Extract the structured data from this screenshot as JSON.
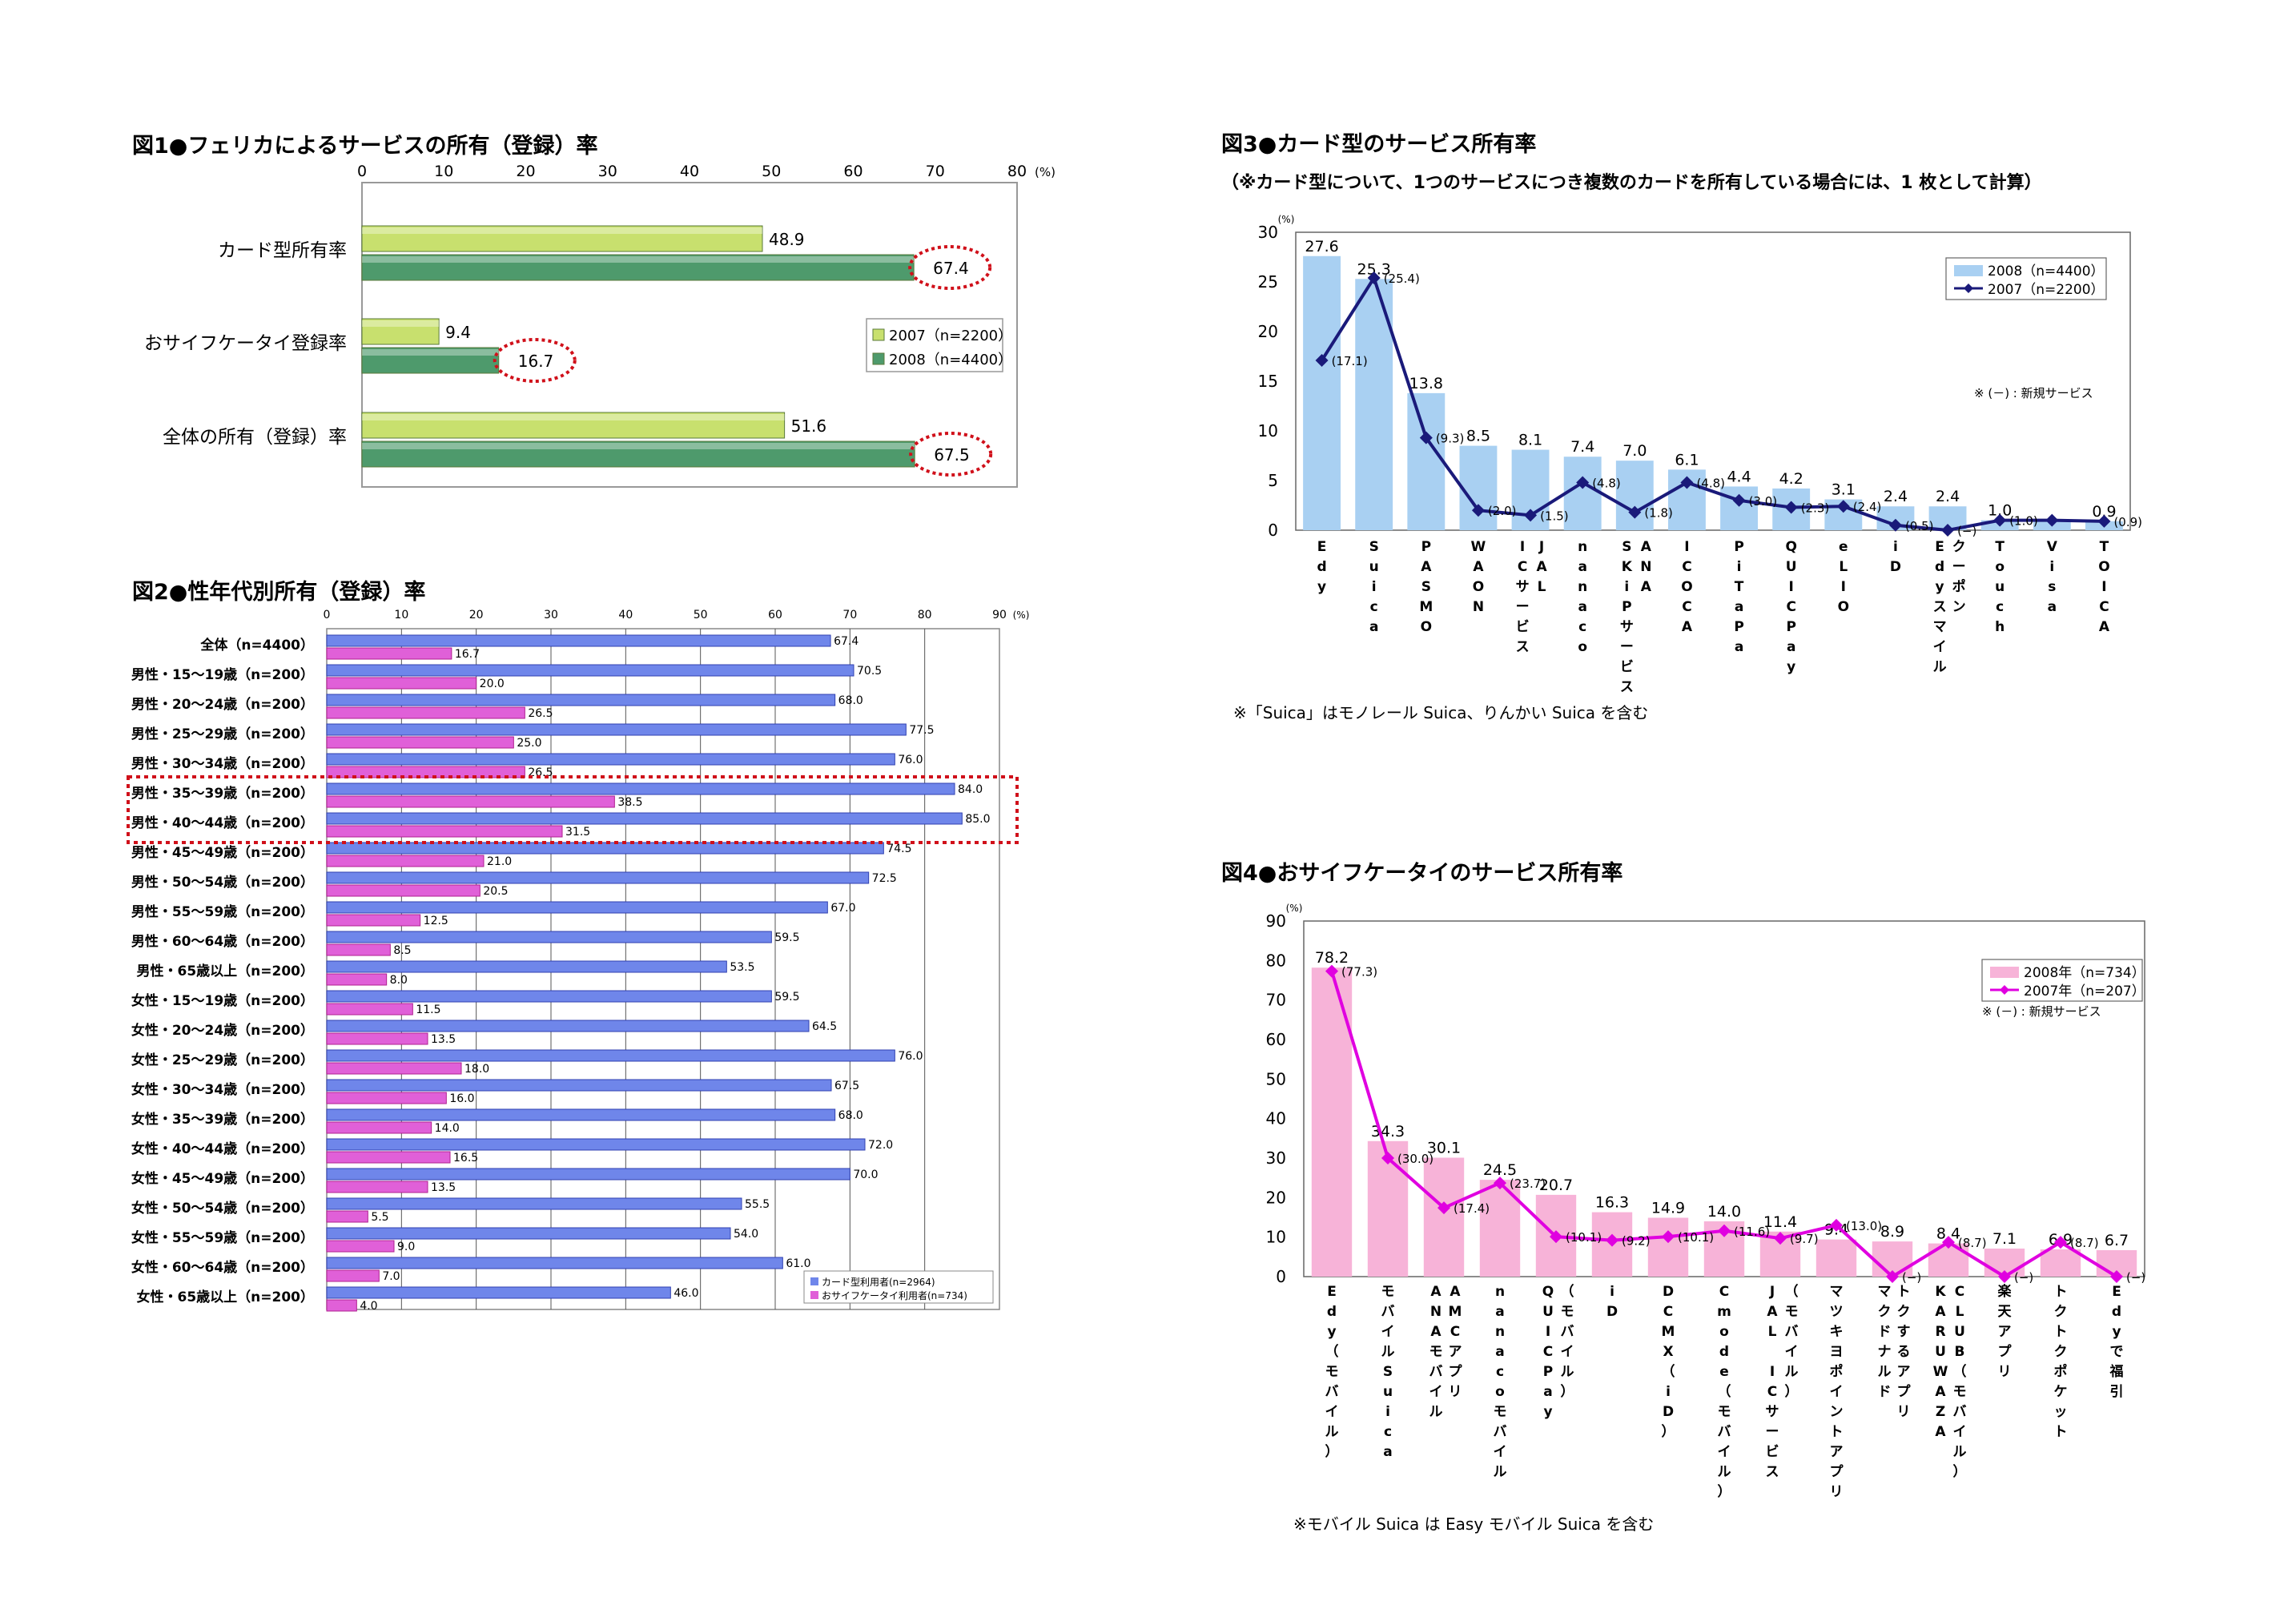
{
  "chart_data": [
    {
      "id": "fig1",
      "type": "bar",
      "orientation": "horizontal",
      "title": "図1●フェリカによるサービスの所有（登録）率",
      "unit": "(%)",
      "xlim": [
        0,
        80
      ],
      "ticks": [
        "0",
        "10",
        "20",
        "30",
        "40",
        "50",
        "60",
        "70",
        "80"
      ],
      "categories": [
        "カード型所有率",
        "おサイフケータイ登録率",
        "全体の所有（登録）率"
      ],
      "series": [
        {
          "name": "2007（n=2200）",
          "values": [
            48.9,
            9.4,
            51.6
          ],
          "labels": [
            "48.9",
            "9.4",
            "51.6"
          ],
          "color": "#c8e06e"
        },
        {
          "name": "2008（n=4400）",
          "values": [
            67.4,
            16.7,
            67.5
          ],
          "labels": [
            "67.4",
            "16.7",
            "67.5"
          ],
          "color": "#4e9a6c"
        }
      ],
      "highlight_series": 1
    },
    {
      "id": "fig2",
      "type": "bar",
      "orientation": "horizontal",
      "title": "図2●性年代別所有（登録）率",
      "unit": "(%)",
      "xlim": [
        0,
        90
      ],
      "ticks": [
        "0",
        "10",
        "20",
        "30",
        "40",
        "50",
        "60",
        "70",
        "80",
        "90"
      ],
      "categories": [
        "全体（n=4400）",
        "男性・15～19歳（n=200）",
        "男性・20～24歳（n=200）",
        "男性・25～29歳（n=200）",
        "男性・30～34歳（n=200）",
        "男性・35～39歳（n=200）",
        "男性・40～44歳（n=200）",
        "男性・45～49歳（n=200）",
        "男性・50～54歳（n=200）",
        "男性・55～59歳（n=200）",
        "男性・60～64歳（n=200）",
        "男性・65歳以上（n=200）",
        "女性・15～19歳（n=200）",
        "女性・20～24歳（n=200）",
        "女性・25～29歳（n=200）",
        "女性・30～34歳（n=200）",
        "女性・35～39歳（n=200）",
        "女性・40～44歳（n=200）",
        "女性・45～49歳（n=200）",
        "女性・50～54歳（n=200）",
        "女性・55～59歳（n=200）",
        "女性・60～64歳（n=200）",
        "女性・65歳以上（n=200）"
      ],
      "series": [
        {
          "name": "カード型利用者(n=2964)",
          "color": "#6f86ea",
          "values": [
            67.4,
            70.5,
            68.0,
            77.5,
            76.0,
            84.0,
            85.0,
            74.5,
            72.5,
            67.0,
            59.5,
            53.5,
            59.5,
            64.5,
            76.0,
            67.5,
            68.0,
            72.0,
            70.0,
            55.5,
            54.0,
            61.0,
            46.0
          ],
          "labels": [
            "67.4",
            "70.5",
            "68.0",
            "77.5",
            "76.0",
            "84.0",
            "85.0",
            "74.5",
            "72.5",
            "67.0",
            "59.5",
            "53.5",
            "59.5",
            "64.5",
            "76.0",
            "67.5",
            "68.0",
            "72.0",
            "70.0",
            "55.5",
            "54.0",
            "61.0",
            "46.0"
          ]
        },
        {
          "name": "おサイフケータイ利用者(n=734)",
          "color": "#e060d8",
          "values": [
            16.7,
            20.0,
            26.5,
            25.0,
            26.5,
            38.5,
            31.5,
            21.0,
            20.5,
            12.5,
            8.5,
            8.0,
            11.5,
            13.5,
            18.0,
            16.0,
            14.0,
            16.5,
            13.5,
            5.5,
            9.0,
            7.0,
            4.0
          ],
          "labels": [
            "16.7",
            "20.0",
            "26.5",
            "25.0",
            "26.5",
            "38.5",
            "31.5",
            "21.0",
            "20.5",
            "12.5",
            "8.5",
            "8.0",
            "11.5",
            "13.5",
            "18.0",
            "16.0",
            "14.0",
            "16.5",
            "13.5",
            "5.5",
            "9.0",
            "7.0",
            "4.0"
          ]
        }
      ],
      "highlight_rows": [
        5,
        6
      ]
    },
    {
      "id": "fig3",
      "type": "bar",
      "title": "図3●カード型のサービス所有率",
      "subtitle": "（※カード型について、1つのサービスにつき複数のカードを所有している場合には、1 枚として計算）",
      "unit": "(%)",
      "ylim": [
        0,
        30
      ],
      "ticks": [
        "0",
        "5",
        "10",
        "15",
        "20",
        "25",
        "30"
      ],
      "categories": [
        "Edy",
        "Suica",
        "PASMO",
        "WAON",
        "ICサービスJAL",
        "nanaco",
        "SKiPサービスANA",
        "ICOCA",
        "PiTaPa",
        "QUICPay",
        "eLIO",
        "iD",
        "Edyスマイルクーポン",
        "Touch",
        "Visa",
        "TOICA"
      ],
      "category_lines": [
        [
          "E",
          "d",
          "y"
        ],
        [
          "S",
          "u",
          "i",
          "c",
          "a"
        ],
        [
          "P",
          "A",
          "S",
          "M",
          "O"
        ],
        [
          "W",
          "A",
          "O",
          "N"
        ],
        [
          "I",
          "C",
          "サ",
          "ー",
          "ビ",
          "ス"
        ],
        [
          "n",
          "a",
          "n",
          "a",
          "c",
          "o"
        ],
        [
          "S",
          "K",
          "i",
          "P",
          "サ",
          "ー",
          "ビ",
          "ス"
        ],
        [
          "I",
          "C",
          "O",
          "C",
          "A"
        ],
        [
          "P",
          "i",
          "T",
          "a",
          "P",
          "a"
        ],
        [
          "Q",
          "U",
          "I",
          "C",
          "P",
          "a",
          "y"
        ],
        [
          "e",
          "L",
          "I",
          "O"
        ],
        [
          "i",
          "D"
        ],
        [
          "E",
          "d",
          "y",
          "ス",
          "マ",
          "イ",
          "ル"
        ],
        [
          "T",
          "o",
          "u",
          "c",
          "h"
        ],
        [
          "V",
          "i",
          "s",
          "a"
        ],
        [
          "T",
          "O",
          "I",
          "C",
          "A"
        ]
      ],
      "category_lines2": [
        [],
        [],
        [],
        [],
        [
          "J",
          "A",
          "L"
        ],
        [],
        [
          "A",
          "N",
          "A"
        ],
        [],
        [],
        [],
        [],
        [],
        [
          "ク",
          "ー",
          "ポ",
          "ン"
        ],
        [],
        [],
        []
      ],
      "bar_series": {
        "name": "2008（n=4400）",
        "color": "#a9d0f2",
        "values": [
          27.6,
          25.3,
          13.8,
          8.5,
          8.1,
          7.4,
          7.0,
          6.1,
          4.4,
          4.2,
          3.1,
          2.4,
          2.4,
          1.0,
          1.0,
          0.9
        ],
        "labels": [
          "27.6",
          "25.3",
          "13.8",
          "8.5",
          "8.1",
          "7.4",
          "7.0",
          "6.1",
          "4.4",
          "4.2",
          "3.1",
          "2.4",
          "2.4",
          "1.0",
          "",
          "0.9"
        ]
      },
      "line_series": {
        "name": "2007（n=2200）",
        "color": "#1a1a7a",
        "values": [
          17.1,
          25.4,
          9.3,
          2.0,
          1.5,
          4.8,
          1.8,
          4.8,
          3.0,
          2.3,
          2.4,
          0.5,
          0.0,
          1.0,
          1.0,
          0.9
        ],
        "labels": [
          "(17.1)",
          "(25.4)",
          "(9.3)",
          "(2.0)",
          "(1.5)",
          "(4.8)",
          "(1.8)",
          "(4.8)",
          "(3.0)",
          "(2.3)",
          "(2.4)",
          "(0.5)",
          "(−)",
          "(1.0)",
          "",
          "(0.9)"
        ]
      },
      "legend_note": "※ (－) : 新規サービス",
      "footnote": "※「Suica」はモノレール Suica、りんかい Suica を含む"
    },
    {
      "id": "fig4",
      "type": "bar",
      "title": "図4●おサイフケータイのサービス所有率",
      "unit": "(%)",
      "ylim": [
        0,
        90
      ],
      "ticks": [
        "0",
        "10",
        "20",
        "30",
        "40",
        "50",
        "60",
        "70",
        "80",
        "90"
      ],
      "categories": [
        "Edy（モバイル）",
        "モバイルSuica",
        "ANAモバイルAMCアプリ",
        "nanacoモバイル",
        "QUICPay（モバイル）",
        "iD",
        "DCMX（iD）",
        "Cmode（モバイル）",
        "JAL ICサービス（モバイル）",
        "マツキヨポイントアプリ",
        "マクドナルドトクするアプリ",
        "KARUWAZA CLUB（モバイル）",
        "楽天アプリ",
        "トクトクポケット",
        "Edyで福引"
      ],
      "category_lines": [
        [
          "E",
          "d",
          "y",
          "（",
          "モ",
          "バ",
          "イ",
          "ル",
          "）"
        ],
        [
          "モ",
          "バ",
          "イ",
          "ル",
          "S",
          "u",
          "i",
          "c",
          "a"
        ],
        [
          "A",
          "N",
          "A",
          "モ",
          "バ",
          "イ",
          "ル"
        ],
        [
          "n",
          "a",
          "n",
          "a",
          "c",
          "o",
          "モ",
          "バ",
          "イ",
          "ル"
        ],
        [
          "Q",
          "U",
          "I",
          "C",
          "P",
          "a",
          "y"
        ],
        [
          "i",
          "D"
        ],
        [
          "D",
          "C",
          "M",
          "X",
          "（",
          "i",
          "D",
          "）"
        ],
        [
          "C",
          "m",
          "o",
          "d",
          "e",
          "（",
          "モ",
          "バ",
          "イ",
          "ル",
          "）"
        ],
        [
          "J",
          "A",
          "L",
          "　",
          "I",
          "C",
          "サ",
          "ー",
          "ビ",
          "ス"
        ],
        [
          "マ",
          "ツ",
          "キ",
          "ヨ",
          "ポ",
          "イ",
          "ン",
          "ト",
          "ア",
          "プ",
          "リ"
        ],
        [
          "マ",
          "ク",
          "ド",
          "ナ",
          "ル",
          "ド"
        ],
        [
          "K",
          "A",
          "R",
          "U",
          "W",
          "A",
          "Z",
          "A"
        ],
        [
          "楽",
          "天",
          "ア",
          "プ",
          "リ"
        ],
        [
          "ト",
          "ク",
          "ト",
          "ク",
          "ポ",
          "ケ",
          "ッ",
          "ト"
        ],
        [
          "E",
          "d",
          "y",
          "で",
          "福",
          "引"
        ]
      ],
      "category_lines2": [
        [],
        [],
        [
          "A",
          "M",
          "C",
          "ア",
          "プ",
          "リ"
        ],
        [],
        [
          "（",
          "モ",
          "バ",
          "イ",
          "ル",
          "）"
        ],
        [],
        [],
        [],
        [
          "（",
          "モ",
          "バ",
          "イ",
          "ル",
          "）"
        ],
        [],
        [
          "ト",
          "ク",
          "す",
          "る",
          "ア",
          "プ",
          "リ"
        ],
        [
          "C",
          "L",
          "U",
          "B",
          "（",
          "モ",
          "バ",
          "イ",
          "ル",
          "）"
        ],
        [],
        [],
        []
      ],
      "bar_series": {
        "name": "2008年（n=734）",
        "color": "#f7b3d8",
        "values": [
          78.2,
          34.3,
          30.1,
          24.5,
          20.7,
          16.3,
          14.9,
          14.0,
          11.4,
          9.4,
          8.9,
          8.4,
          7.1,
          6.9,
          6.7
        ],
        "labels": [
          "78.2",
          "34.3",
          "30.1",
          "24.5",
          "20.7",
          "16.3",
          "14.9",
          "14.0",
          "11.4",
          "9.4",
          "8.9",
          "8.4",
          "7.1",
          "6.9",
          "6.7"
        ]
      },
      "line_series": {
        "name": "2007年（n=207）",
        "color": "#e000e0",
        "values": [
          77.3,
          30.0,
          17.4,
          23.7,
          10.1,
          9.2,
          10.1,
          11.6,
          9.7,
          13.0,
          0,
          8.7,
          0,
          8.7,
          0
        ],
        "labels": [
          "(77.3)",
          "(30.0)",
          "(17.4)",
          "(23.7)",
          "(10.1)",
          "(9.2)",
          "(10.1)",
          "(11.6)",
          "(9.7)",
          "(13.0)",
          "(−)",
          "(8.7)",
          "(−)",
          "(8.7)",
          "(−)"
        ]
      },
      "legend_note": "※ (－) : 新規サービス",
      "footnote": "※モバイル Suica は Easy モバイル Suica を含む"
    }
  ]
}
